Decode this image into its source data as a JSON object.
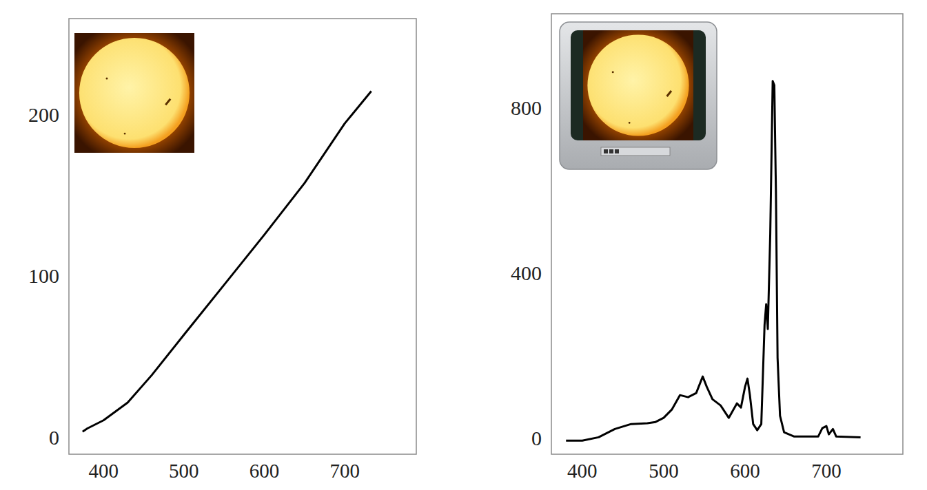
{
  "chart_data": [
    {
      "type": "line",
      "color": "#000000",
      "x": [
        374,
        380,
        400,
        430,
        460,
        500,
        550,
        600,
        650,
        700,
        733
      ],
      "values": [
        5,
        7,
        12,
        23,
        40,
        65,
        96,
        127,
        159,
        196,
        216
      ],
      "xlim": [
        357,
        789
      ],
      "ylim": [
        -9,
        261
      ],
      "xticks": [
        400,
        500,
        600,
        700
      ],
      "yticks": [
        0,
        100,
        200
      ]
    },
    {
      "type": "line",
      "color": "#000000",
      "x": [
        380,
        400,
        420,
        440,
        460,
        480,
        490,
        500,
        510,
        520,
        530,
        540,
        548,
        553,
        560,
        570,
        580,
        590,
        595,
        600,
        603,
        606,
        610,
        615,
        620,
        624,
        626,
        628,
        631,
        634,
        636,
        638,
        640,
        643,
        648,
        660,
        690,
        695,
        700,
        703,
        708,
        712,
        742
      ],
      "values": [
        0,
        0,
        8,
        28,
        40,
        42,
        45,
        55,
        75,
        110,
        105,
        115,
        155,
        130,
        100,
        85,
        55,
        90,
        80,
        130,
        150,
        110,
        40,
        25,
        40,
        280,
        330,
        270,
        500,
        870,
        860,
        600,
        200,
        60,
        20,
        10,
        10,
        30,
        35,
        15,
        28,
        10,
        8
      ],
      "xlim": [
        362,
        794
      ],
      "ylim": [
        -33,
        1033
      ],
      "xticks": [
        400,
        500,
        600,
        700
      ],
      "yticks": [
        0,
        400,
        800
      ]
    }
  ]
}
